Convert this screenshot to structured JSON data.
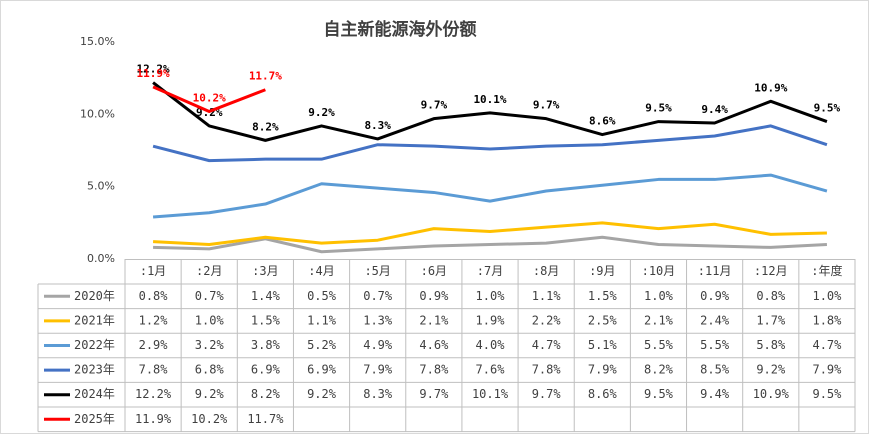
{
  "chart_data": {
    "type": "line",
    "title": "自主新能源海外份额",
    "categories": [
      ":1月",
      ":2月",
      ":3月",
      ":4月",
      ":5月",
      ":6月",
      ":7月",
      ":8月",
      ":9月",
      ":10月",
      ":11月",
      ":12月",
      ":年度"
    ],
    "ylim": [
      0,
      15
    ],
    "yticks": [
      {
        "value": 0,
        "label": "0.0%"
      },
      {
        "value": 5,
        "label": "5.0%"
      },
      {
        "value": 10,
        "label": "10.0%"
      },
      {
        "value": 15,
        "label": "15.0%"
      }
    ],
    "grid": false,
    "series": [
      {
        "name": "2020年",
        "color": "#a5a5a5",
        "data_labels": false,
        "values": [
          0.8,
          0.7,
          1.4,
          0.5,
          0.7,
          0.9,
          1.0,
          1.1,
          1.5,
          1.0,
          0.9,
          0.8,
          1.0
        ],
        "value_labels": [
          "0.8%",
          "0.7%",
          "1.4%",
          "0.5%",
          "0.7%",
          "0.9%",
          "1.0%",
          "1.1%",
          "1.5%",
          "1.0%",
          "0.9%",
          "0.8%",
          "1.0%"
        ]
      },
      {
        "name": "2021年",
        "color": "#ffc000",
        "data_labels": false,
        "values": [
          1.2,
          1.0,
          1.5,
          1.1,
          1.3,
          2.1,
          1.9,
          2.2,
          2.5,
          2.1,
          2.4,
          1.7,
          1.8
        ],
        "value_labels": [
          "1.2%",
          "1.0%",
          "1.5%",
          "1.1%",
          "1.3%",
          "2.1%",
          "1.9%",
          "2.2%",
          "2.5%",
          "2.1%",
          "2.4%",
          "1.7%",
          "1.8%"
        ]
      },
      {
        "name": "2022年",
        "color": "#5b9bd5",
        "data_labels": false,
        "values": [
          2.9,
          3.2,
          3.8,
          5.2,
          4.9,
          4.6,
          4.0,
          4.7,
          5.1,
          5.5,
          5.5,
          5.8,
          4.7
        ],
        "value_labels": [
          "2.9%",
          "3.2%",
          "3.8%",
          "5.2%",
          "4.9%",
          "4.6%",
          "4.0%",
          "4.7%",
          "5.1%",
          "5.5%",
          "5.5%",
          "5.8%",
          "4.7%"
        ]
      },
      {
        "name": "2023年",
        "color": "#4472c4",
        "data_labels": false,
        "values": [
          7.8,
          6.8,
          6.9,
          6.9,
          7.9,
          7.8,
          7.6,
          7.8,
          7.9,
          8.2,
          8.5,
          9.2,
          7.9
        ],
        "value_labels": [
          "7.8%",
          "6.8%",
          "6.9%",
          "6.9%",
          "7.9%",
          "7.8%",
          "7.6%",
          "7.8%",
          "7.9%",
          "8.2%",
          "8.5%",
          "9.2%",
          "7.9%"
        ]
      },
      {
        "name": "2024年",
        "color": "#000000",
        "data_labels": true,
        "values": [
          12.2,
          9.2,
          8.2,
          9.2,
          8.3,
          9.7,
          10.1,
          9.7,
          8.6,
          9.5,
          9.4,
          10.9,
          9.5
        ],
        "value_labels": [
          "12.2%",
          "9.2%",
          "8.2%",
          "9.2%",
          "8.3%",
          "9.7%",
          "10.1%",
          "9.7%",
          "8.6%",
          "9.5%",
          "9.4%",
          "10.9%",
          "9.5%"
        ]
      },
      {
        "name": "2025年",
        "color": "#ff0000",
        "data_labels": true,
        "values": [
          11.9,
          10.2,
          11.7,
          null,
          null,
          null,
          null,
          null,
          null,
          null,
          null,
          null,
          null
        ],
        "value_labels": [
          "11.9%",
          "10.2%",
          "11.7%",
          null,
          null,
          null,
          null,
          null,
          null,
          null,
          null,
          null,
          null
        ]
      }
    ]
  }
}
